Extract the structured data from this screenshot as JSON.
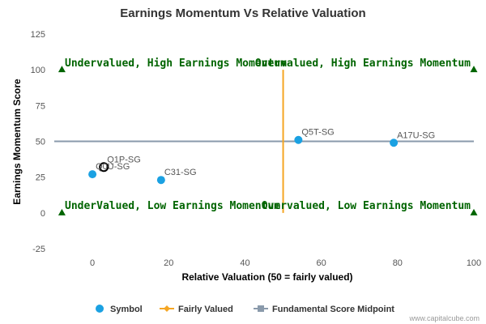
{
  "chart_data": {
    "type": "scatter",
    "title": "Earnings Momentum Vs Relative Valuation",
    "xlabel": "Relative Valuation (50 = fairly valued)",
    "ylabel": "Earnings Momentum Score",
    "xlim": [
      -10,
      100
    ],
    "ylim": [
      -25,
      125
    ],
    "x_ticks": [
      "0",
      "20",
      "40",
      "60",
      "80",
      "100"
    ],
    "y_ticks": [
      "125",
      "100",
      "75",
      "50",
      "25",
      "0",
      "-25"
    ],
    "points": [
      {
        "label": "Q5T-SG",
        "x": 54,
        "y": 51,
        "highlighted": false
      },
      {
        "label": "A17U-SG",
        "x": 79,
        "y": 49,
        "highlighted": false
      },
      {
        "label": "Q1P-SG",
        "x": 3,
        "y": 32,
        "highlighted": true
      },
      {
        "label": "Q0U-SG",
        "x": 0,
        "y": 27,
        "highlighted": false
      },
      {
        "label": "C31-SG",
        "x": 18,
        "y": 23,
        "highlighted": false
      }
    ],
    "fairly_valued_x": 50,
    "midpoint_y": 50,
    "quadrant_labels": {
      "top_left": "Undervalued, High Earnings Momentum",
      "top_right": "Overvalued, High Earnings Momentum",
      "bottom_left": "UnderValued, Low Earnings Momentum",
      "bottom_right": "Overvalued, Low Earnings Momentum"
    },
    "legend": [
      "Symbol",
      "Fairly Valued",
      "Fundamental Score Midpoint"
    ],
    "legend_position": "bottom",
    "grid": false,
    "colors": {
      "symbol": "#1ba1e2",
      "fairly_valued": "#f5a623",
      "midpoint": "#8a9aab",
      "quadrant_text": "#006400",
      "marker": "#006400"
    }
  },
  "credit": "www.capitalcube.com"
}
